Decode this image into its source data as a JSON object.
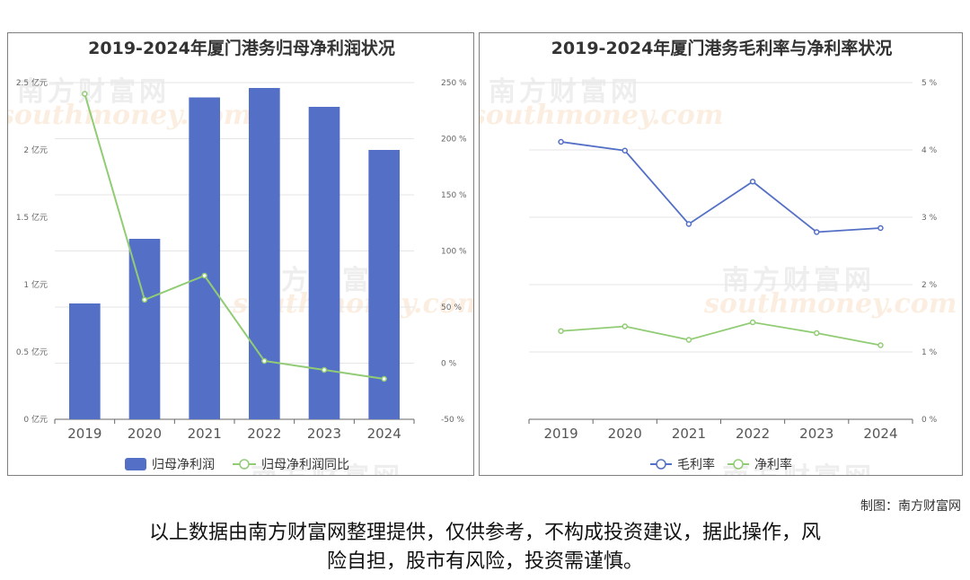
{
  "chart_data": [
    {
      "type": "bar",
      "title": "2019-2024年厦门港务归母净利润状况",
      "categories": [
        "2019",
        "2020",
        "2021",
        "2022",
        "2023",
        "2024"
      ],
      "series": [
        {
          "name": "归母净利润",
          "type": "bar",
          "axis": "left",
          "color": "#5470c6",
          "values": [
            0.86,
            1.34,
            2.39,
            2.46,
            2.32,
            2.0
          ]
        },
        {
          "name": "归母净利润同比",
          "type": "line",
          "axis": "right",
          "color": "#91cc75",
          "values": [
            240,
            56.5,
            78,
            2,
            -6,
            -14
          ]
        }
      ],
      "y_left": {
        "ylim": [
          0,
          2.5
        ],
        "ticks": [
          "0 亿元",
          "0.5 亿元",
          "1 亿元",
          "1.5 亿元",
          "2 亿元",
          "2.5 亿元"
        ]
      },
      "y_right": {
        "ylim": [
          -50,
          250
        ],
        "ticks": [
          "-50 %",
          "0 %",
          "50 %",
          "100 %",
          "150 %",
          "200 %",
          "250 %"
        ]
      },
      "legend": "bottom-center",
      "grid": true
    },
    {
      "type": "line",
      "title": "2019-2024年厦门港务毛利率与净利率状况",
      "categories": [
        "2019",
        "2020",
        "2021",
        "2022",
        "2023",
        "2024"
      ],
      "series": [
        {
          "name": "毛利率",
          "color": "#5470c6",
          "values": [
            4.12,
            3.99,
            2.9,
            3.53,
            2.78,
            2.84
          ]
        },
        {
          "name": "净利率",
          "color": "#91cc75",
          "values": [
            1.31,
            1.38,
            1.18,
            1.44,
            1.28,
            1.1
          ]
        }
      ],
      "y_right": {
        "ylim": [
          0,
          5
        ],
        "ticks": [
          "0 %",
          "1 %",
          "2 %",
          "3 %",
          "4 %",
          "5 %"
        ]
      },
      "legend": "bottom-center",
      "grid": true
    }
  ],
  "footer": {
    "credit": "制图：南方财富网",
    "disclaimer_line1": "以上数据由南方财富网整理提供，仅供参考，不构成投资建议，据此操作，风",
    "disclaimer_line2": "险自担，股市有风险，投资需谨慎。"
  },
  "watermark": {
    "cn": "南方财富网",
    "en": "southmoney.com"
  }
}
